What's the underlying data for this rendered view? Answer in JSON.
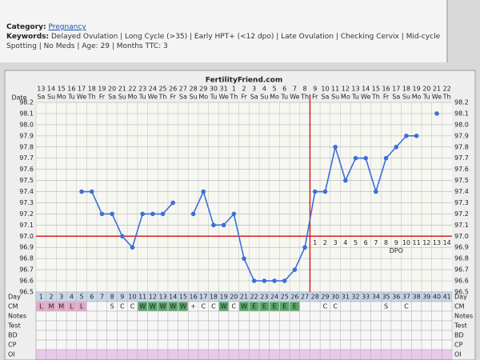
{
  "header": {
    "category_label": "Category:",
    "category": "Pregnancy",
    "keywords_label": "Keywords:",
    "keywords": "Delayed Ovulation | Long Cycle (>35) | Early HPT+ (<12 dpo) | Late Ovulation | Checking Cervix | Mid-cycle Spotting | No Meds | Age: 29 | Months TTC: 3"
  },
  "chart_data": {
    "type": "line",
    "title": "FertilityFriend.com",
    "x_label": "Date",
    "categories": [
      13,
      14,
      15,
      16,
      17,
      18,
      19,
      20,
      21,
      22,
      23,
      24,
      25,
      26,
      27,
      28,
      29,
      30,
      31,
      1,
      2,
      3,
      4,
      5,
      6,
      7,
      8,
      9,
      10,
      11,
      12,
      13,
      14,
      15,
      16,
      17,
      18,
      19,
      20,
      21,
      22
    ],
    "weekdays": [
      "Sa",
      "Su",
      "Mo",
      "Tu",
      "We",
      "Th",
      "Fr",
      "Sa",
      "Su",
      "Mo",
      "Tu",
      "We",
      "Th",
      "Fr",
      "Sa",
      "Su",
      "Mo",
      "Tu",
      "We",
      "Th",
      "Fr",
      "Sa",
      "Su",
      "Mo",
      "Tu",
      "We",
      "Th",
      "Fr",
      "Sa",
      "Su",
      "Mo",
      "Tu",
      "We",
      "Th",
      "Fr",
      "Sa",
      "Su",
      "Mo",
      "Tu",
      "We",
      "Th"
    ],
    "values": [
      null,
      null,
      null,
      null,
      97.4,
      97.4,
      97.2,
      97.2,
      97.0,
      96.9,
      97.2,
      97.2,
      97.2,
      97.3,
      null,
      97.2,
      97.4,
      97.1,
      97.1,
      97.2,
      96.8,
      96.6,
      96.6,
      96.6,
      96.6,
      96.7,
      96.9,
      97.4,
      97.4,
      97.8,
      97.5,
      97.7,
      97.7,
      97.4,
      97.7,
      97.8,
      97.9,
      97.9,
      null,
      98.1,
      null
    ],
    "color": "#3d6fd6",
    "ylim": [
      96.5,
      98.2
    ],
    "yticks": [
      96.5,
      96.6,
      96.7,
      96.8,
      96.9,
      {
        "value": 97,
        "label": "97.0"
      },
      97.1,
      97.2,
      97.3,
      97.4,
      97.5,
      97.6,
      97.7,
      97.8,
      97.9,
      {
        "value": 98,
        "label": "98.0"
      },
      98.1,
      98.2
    ],
    "grid": true,
    "coverline": {
      "value": 97,
      "color": "#d42020"
    },
    "dpo": {
      "label": "DPO",
      "values": [
        null,
        null,
        null,
        null,
        null,
        null,
        null,
        null,
        null,
        null,
        null,
        null,
        null,
        null,
        null,
        null,
        null,
        null,
        null,
        null,
        null,
        null,
        null,
        null,
        null,
        null,
        null,
        1,
        2,
        3,
        4,
        5,
        6,
        7,
        8,
        9,
        10,
        11,
        12,
        13,
        14
      ]
    }
  },
  "table": {
    "row_labels": [
      "Day",
      "CM",
      "Notes",
      "Test",
      "BD",
      "CP",
      "OI"
    ],
    "days": [
      1,
      2,
      3,
      4,
      5,
      6,
      7,
      8,
      9,
      10,
      11,
      12,
      13,
      14,
      15,
      16,
      17,
      18,
      19,
      20,
      21,
      22,
      23,
      24,
      25,
      26,
      27,
      28,
      29,
      30,
      31,
      32,
      33,
      34,
      35,
      36,
      37,
      38,
      39,
      40,
      41
    ],
    "cm": [
      "L",
      "M",
      "M",
      "L",
      "L",
      null,
      null,
      "S",
      "C",
      "C",
      "W",
      "W",
      "W",
      "W",
      "W",
      "+",
      "C",
      "C",
      "W",
      "C",
      "W",
      "E",
      "E",
      "E",
      "E",
      "E",
      null,
      null,
      "C",
      "C",
      null,
      null,
      null,
      null,
      "S",
      null,
      "C",
      null,
      null,
      null,
      null
    ]
  }
}
